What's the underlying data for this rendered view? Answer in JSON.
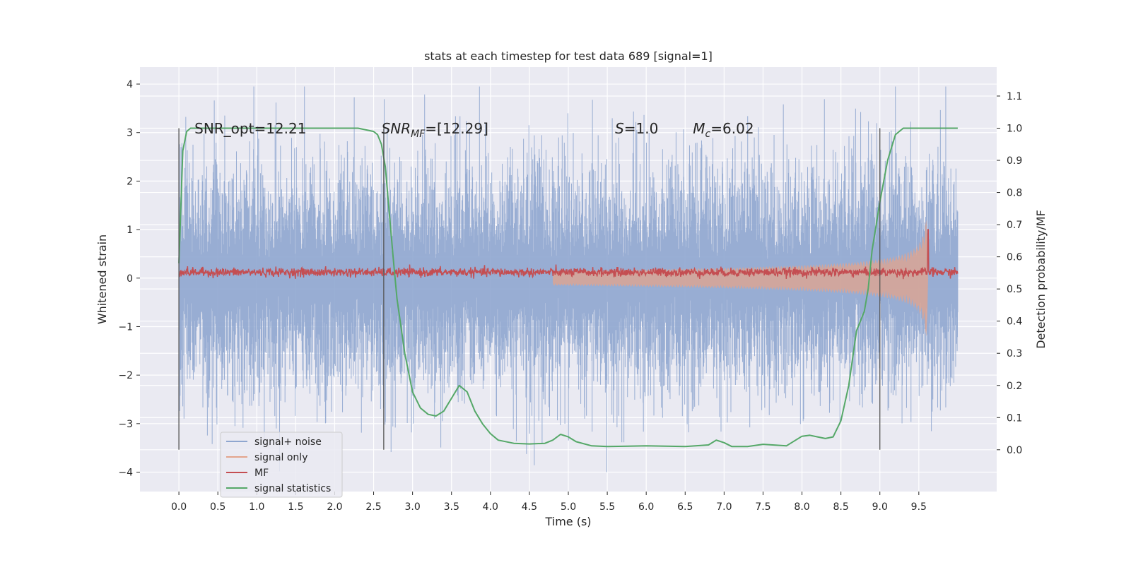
{
  "chart_data": {
    "type": "line",
    "title": "stats at each timestep for test data 689 [signal=1]",
    "xlabel": "Time (s)",
    "ylabel": "Whitened strain",
    "ylabel_right": "Detection probability/MF",
    "xlim": [
      -0.5,
      10.5
    ],
    "ylim": [
      -4.4,
      4.35
    ],
    "ylim_right": [
      -0.13,
      1.19
    ],
    "x_ticks": [
      "0.0",
      "0.5",
      "1.0",
      "1.5",
      "2.0",
      "2.5",
      "3.0",
      "3.5",
      "4.0",
      "4.5",
      "5.0",
      "5.5",
      "6.0",
      "6.5",
      "7.0",
      "7.5",
      "8.0",
      "8.5",
      "9.0",
      "9.5"
    ],
    "y_ticks": [
      "4",
      "3",
      "2",
      "1",
      "0",
      "−1",
      "−2",
      "−3",
      "−4"
    ],
    "y_right_ticks": [
      "1.1",
      "1.0",
      "0.9",
      "0.8",
      "0.7",
      "0.6",
      "0.5",
      "0.4",
      "0.3",
      "0.2",
      "0.1",
      "0.0"
    ],
    "grid": true,
    "legend_position": "lower-left",
    "annotations": [
      {
        "id": "snr-opt",
        "text": "SNR_opt=12.21",
        "x": 0.2,
        "y": 3.1
      },
      {
        "id": "snr-mf",
        "text": "SNR",
        "sub": "MF",
        "suffix": "=[12.29]",
        "x": 2.6,
        "y": 3.1
      },
      {
        "id": "s-val",
        "text": "S",
        "suffix": "=1.0",
        "x": 5.6,
        "y": 3.1
      },
      {
        "id": "mc-val",
        "text": "M",
        "sub": "c",
        "suffix": "=6.02",
        "x": 6.6,
        "y": 3.1
      }
    ],
    "vertical_markers": [
      0.0,
      2.63,
      9.0
    ],
    "series": [
      {
        "name": "signal+ noise",
        "color": "#8fa6cf",
        "kind": "noise",
        "amplitude_pct95": 2.3,
        "x_range": [
          0,
          10
        ]
      },
      {
        "name": "signal only",
        "color": "#e3a48c",
        "kind": "chirp_envelope",
        "peak_x": 9.62,
        "peak_value": 1.3
      },
      {
        "name": "MF",
        "color": "#c44e52",
        "kind": "mf",
        "baseline": 0.12,
        "peak_x": 9.62,
        "peak_value": 1.0
      },
      {
        "name": "signal statistics",
        "color": "#55a868",
        "kind": "probability",
        "x": [
          0.0,
          0.05,
          0.1,
          0.15,
          0.25,
          0.5,
          1.0,
          1.5,
          2.0,
          2.3,
          2.5,
          2.55,
          2.6,
          2.65,
          2.7,
          2.75,
          2.8,
          2.9,
          3.0,
          3.1,
          3.2,
          3.3,
          3.4,
          3.5,
          3.6,
          3.7,
          3.8,
          3.9,
          4.0,
          4.1,
          4.3,
          4.5,
          4.7,
          4.8,
          4.9,
          5.0,
          5.1,
          5.3,
          5.5,
          6.0,
          6.5,
          6.8,
          6.9,
          7.0,
          7.1,
          7.3,
          7.5,
          7.8,
          8.0,
          8.1,
          8.2,
          8.3,
          8.4,
          8.5,
          8.6,
          8.7,
          8.8,
          8.85,
          8.9,
          9.0,
          9.1,
          9.2,
          9.3,
          9.5,
          9.7,
          10.0
        ],
        "y": [
          0.58,
          0.93,
          0.99,
          1.0,
          1.0,
          1.0,
          1.0,
          1.0,
          1.0,
          1.0,
          0.99,
          0.98,
          0.95,
          0.88,
          0.74,
          0.6,
          0.47,
          0.3,
          0.18,
          0.13,
          0.11,
          0.105,
          0.12,
          0.16,
          0.2,
          0.18,
          0.12,
          0.08,
          0.05,
          0.03,
          0.02,
          0.018,
          0.02,
          0.03,
          0.048,
          0.04,
          0.025,
          0.012,
          0.01,
          0.012,
          0.01,
          0.015,
          0.03,
          0.022,
          0.01,
          0.01,
          0.017,
          0.012,
          0.042,
          0.045,
          0.04,
          0.035,
          0.04,
          0.09,
          0.2,
          0.37,
          0.43,
          0.5,
          0.62,
          0.77,
          0.9,
          0.98,
          1.0,
          1.0,
          1.0,
          1.0
        ]
      }
    ]
  }
}
